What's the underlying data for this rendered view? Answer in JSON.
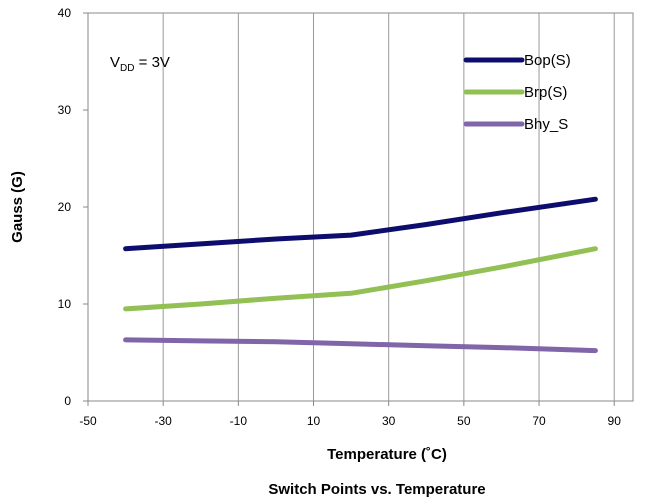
{
  "chart_data": {
    "type": "line",
    "title": "Switch Points vs. Temperature",
    "xlabel": "Temperature (˚C)",
    "ylabel": "Gauss (G)",
    "xlim": [
      -50,
      95
    ],
    "ylim": [
      0,
      40
    ],
    "x_ticks": [
      -50,
      -30,
      -10,
      10,
      30,
      50,
      70,
      90
    ],
    "y_ticks": [
      0,
      10,
      20,
      30,
      40
    ],
    "x_tick_labels": [
      "-50",
      "-30",
      "-10",
      "10",
      "30",
      "50",
      "70",
      "90"
    ],
    "y_tick_labels": [
      "0",
      "10",
      "20",
      "30",
      "40"
    ],
    "grid": "vertical",
    "legend_position": "top-right",
    "annotation": {
      "main": "V",
      "sub": "DD",
      "rest": " = 3V"
    },
    "series": [
      {
        "name": "Bop(S)",
        "color": "#0d0d6e",
        "x": [
          -40,
          -20,
          0,
          20,
          40,
          60,
          85
        ],
        "y": [
          15.7,
          16.2,
          16.7,
          17.1,
          18.2,
          19.4,
          20.8
        ]
      },
      {
        "name": "Brp(S)",
        "color": "#92c055",
        "x": [
          -40,
          -20,
          0,
          20,
          40,
          60,
          85
        ],
        "y": [
          9.5,
          10.0,
          10.6,
          11.1,
          12.4,
          13.8,
          15.7
        ]
      },
      {
        "name": "Bhy_S",
        "color": "#8065a8",
        "x": [
          -40,
          -20,
          0,
          20,
          40,
          60,
          85
        ],
        "y": [
          6.3,
          6.2,
          6.1,
          5.9,
          5.7,
          5.5,
          5.2
        ]
      }
    ]
  }
}
